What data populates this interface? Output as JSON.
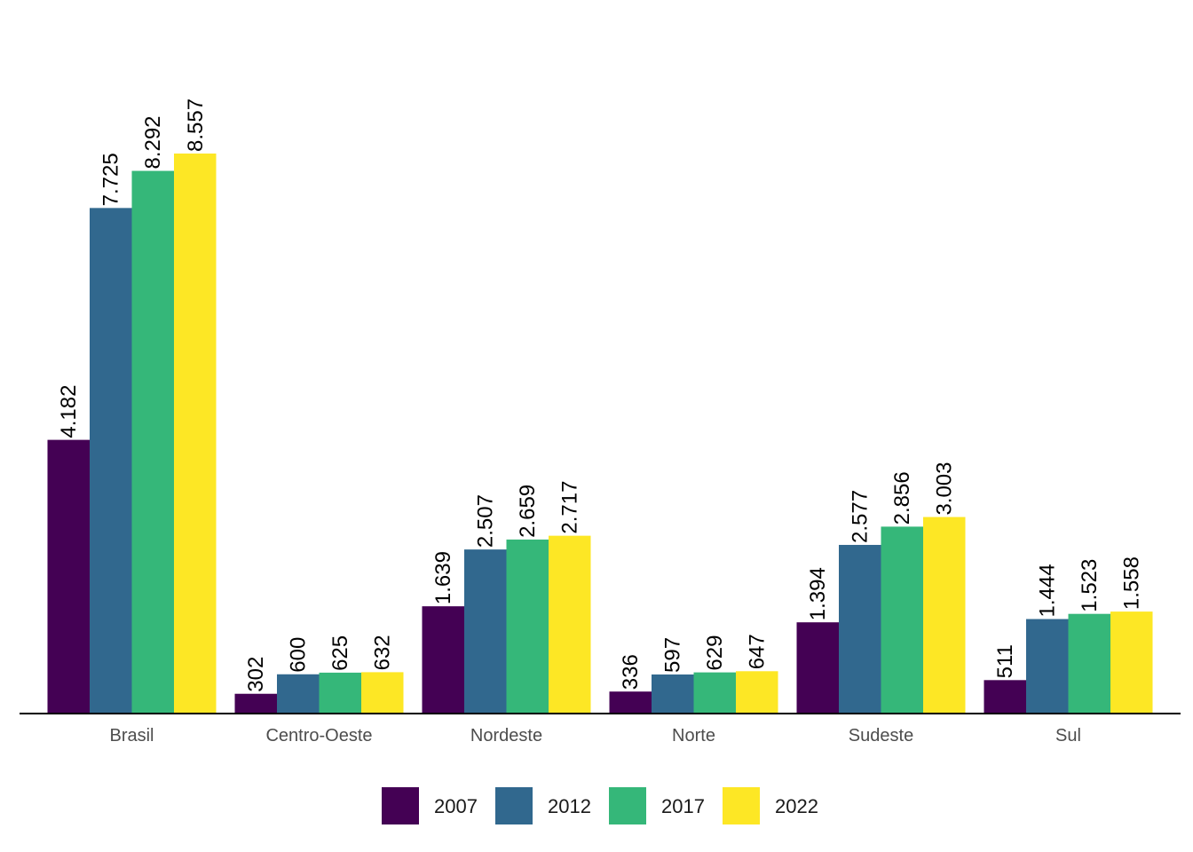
{
  "chart_data": {
    "type": "bar",
    "title": "",
    "xlabel": "",
    "ylabel": "",
    "categories": [
      "Brasil",
      "Centro-Oeste",
      "Nordeste",
      "Norte",
      "Sudeste",
      "Sul"
    ],
    "series": [
      {
        "name": "2007",
        "color": "#440154",
        "values": [
          4182,
          302,
          1639,
          336,
          1394,
          511
        ],
        "labels": [
          "4.182",
          "302",
          "1.639",
          "336",
          "1.394",
          "511"
        ]
      },
      {
        "name": "2012",
        "color": "#31688E",
        "values": [
          7725,
          600,
          2507,
          597,
          2577,
          1444
        ],
        "labels": [
          "7.725",
          "600",
          "2.507",
          "597",
          "2.577",
          "1.444"
        ]
      },
      {
        "name": "2017",
        "color": "#35B779",
        "values": [
          8292,
          625,
          2659,
          629,
          2856,
          1523
        ],
        "labels": [
          "8.292",
          "625",
          "2.659",
          "629",
          "2.856",
          "1.523"
        ]
      },
      {
        "name": "2022",
        "color": "#FDE725",
        "values": [
          8557,
          632,
          2717,
          647,
          3003,
          1558
        ],
        "labels": [
          "8.557",
          "632",
          "2.717",
          "647",
          "3.003",
          "1.558"
        ]
      }
    ],
    "ylim": [
      0,
      8557
    ],
    "grid": false,
    "legend_position": "bottom",
    "data_labels": "rotated-vertical"
  }
}
